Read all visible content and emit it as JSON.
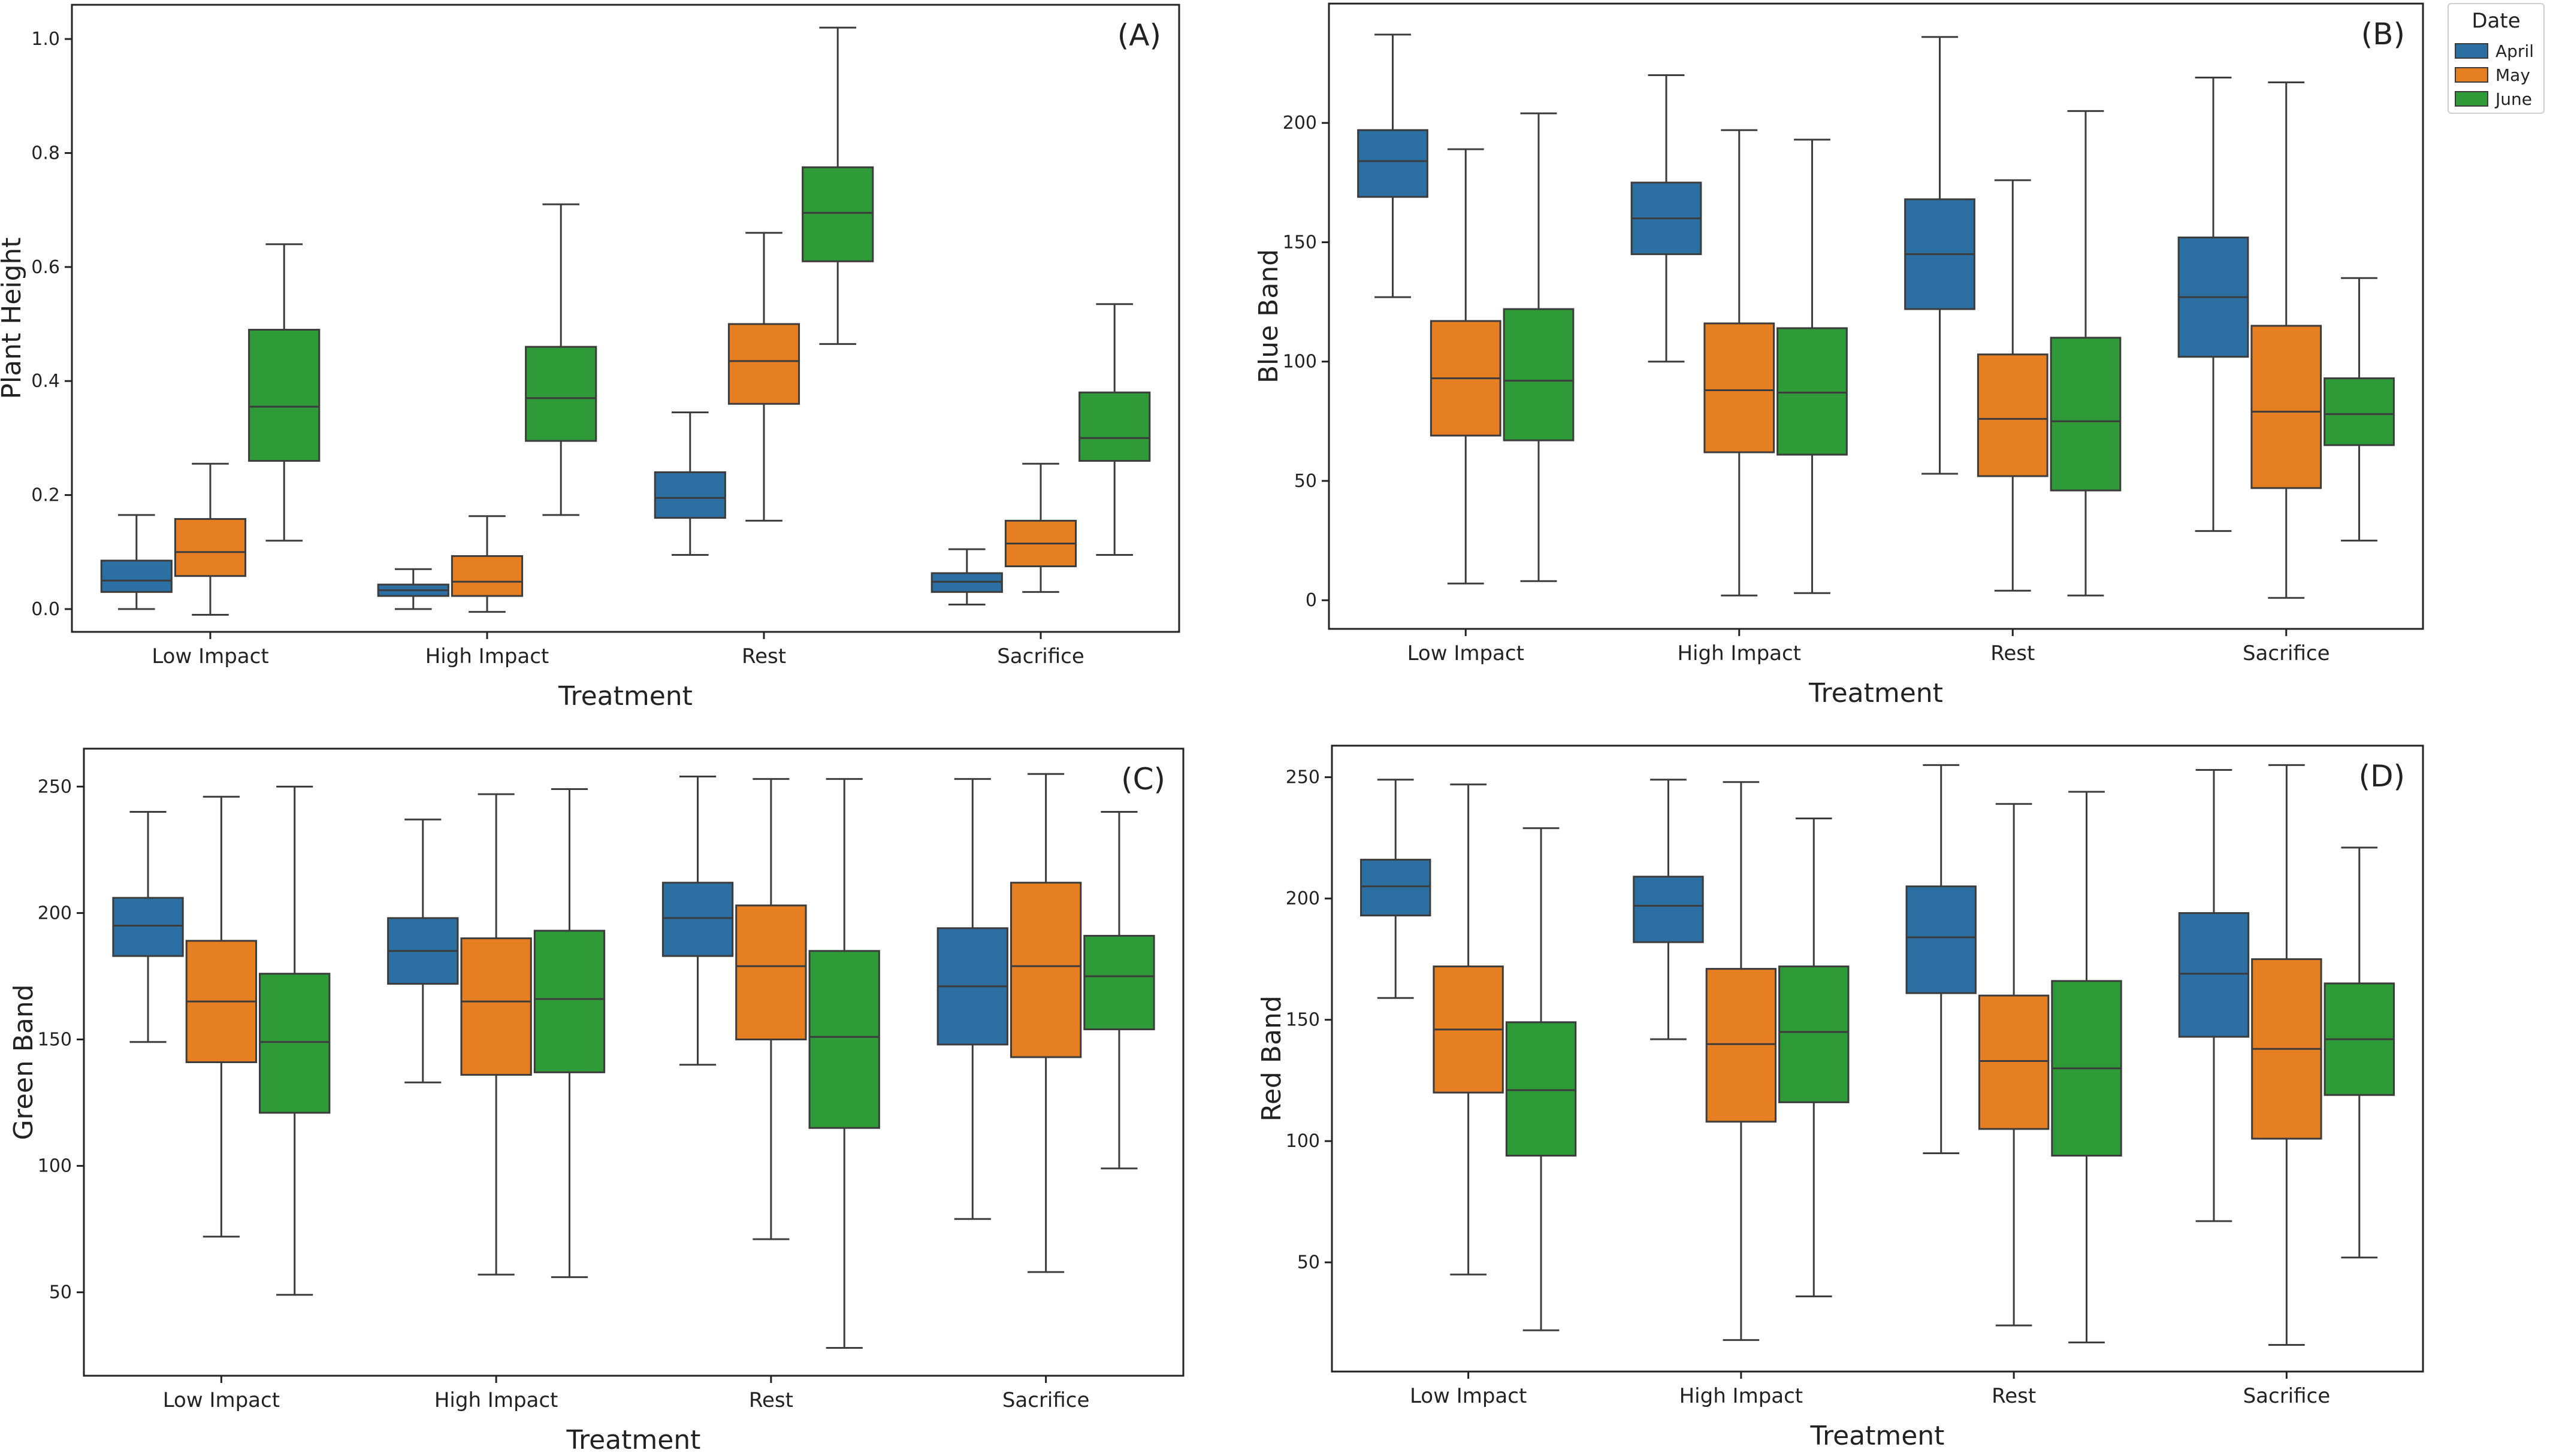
{
  "legend": {
    "title": "Date",
    "items": [
      {
        "label": "April",
        "color": "#2b6fa3"
      },
      {
        "label": "May",
        "color": "#e67e22"
      },
      {
        "label": "June",
        "color": "#2e9a38"
      }
    ]
  },
  "chart_data": [
    {
      "type": "box",
      "panel_label": "(A)",
      "title": "",
      "xlabel": "Treatment",
      "ylabel": "Plant Height",
      "ylim": [
        -0.04,
        1.06
      ],
      "yticks": [
        0.0,
        0.2,
        0.4,
        0.6,
        0.8,
        1.0
      ],
      "ytick_labels": [
        "0.0",
        "0.2",
        "0.4",
        "0.6",
        "0.8",
        "1.0"
      ],
      "categories": [
        "Low Impact",
        "High Impact",
        "Rest",
        "Sacrifice"
      ],
      "series": [
        {
          "name": "April",
          "boxes": [
            {
              "min": 0.0,
              "q1": 0.03,
              "median": 0.05,
              "q3": 0.085,
              "max": 0.165
            },
            {
              "min": 0.0,
              "q1": 0.023,
              "median": 0.033,
              "q3": 0.043,
              "max": 0.07
            },
            {
              "min": 0.095,
              "q1": 0.16,
              "median": 0.195,
              "q3": 0.24,
              "max": 0.345
            },
            {
              "min": 0.008,
              "q1": 0.03,
              "median": 0.048,
              "q3": 0.063,
              "max": 0.105
            }
          ]
        },
        {
          "name": "May",
          "boxes": [
            {
              "min": -0.01,
              "q1": 0.058,
              "median": 0.1,
              "q3": 0.158,
              "max": 0.255
            },
            {
              "min": -0.005,
              "q1": 0.023,
              "median": 0.048,
              "q3": 0.093,
              "max": 0.163
            },
            {
              "min": 0.155,
              "q1": 0.36,
              "median": 0.435,
              "q3": 0.5,
              "max": 0.66
            },
            {
              "min": 0.03,
              "q1": 0.075,
              "median": 0.115,
              "q3": 0.155,
              "max": 0.255
            }
          ]
        },
        {
          "name": "June",
          "boxes": [
            {
              "min": 0.12,
              "q1": 0.26,
              "median": 0.355,
              "q3": 0.49,
              "max": 0.64
            },
            {
              "min": 0.165,
              "q1": 0.295,
              "median": 0.37,
              "q3": 0.46,
              "max": 0.71
            },
            {
              "min": 0.465,
              "q1": 0.61,
              "median": 0.695,
              "q3": 0.775,
              "max": 1.02
            },
            {
              "min": 0.095,
              "q1": 0.26,
              "median": 0.3,
              "q3": 0.38,
              "max": 0.535
            }
          ]
        }
      ]
    },
    {
      "type": "box",
      "panel_label": "(B)",
      "title": "",
      "xlabel": "Treatment",
      "ylabel": "Blue Band",
      "ylim": [
        -12,
        250
      ],
      "yticks": [
        0,
        50,
        100,
        150,
        200
      ],
      "ytick_labels": [
        "0",
        "50",
        "100",
        "150",
        "200"
      ],
      "categories": [
        "Low Impact",
        "High Impact",
        "Rest",
        "Sacrifice"
      ],
      "series": [
        {
          "name": "April",
          "boxes": [
            {
              "min": 127,
              "q1": 169,
              "median": 184,
              "q3": 197,
              "max": 237
            },
            {
              "min": 100,
              "q1": 145,
              "median": 160,
              "q3": 175,
              "max": 220
            },
            {
              "min": 53,
              "q1": 122,
              "median": 145,
              "q3": 168,
              "max": 236
            },
            {
              "min": 29,
              "q1": 102,
              "median": 127,
              "q3": 152,
              "max": 219
            }
          ]
        },
        {
          "name": "May",
          "boxes": [
            {
              "min": 7,
              "q1": 69,
              "median": 93,
              "q3": 117,
              "max": 189
            },
            {
              "min": 2,
              "q1": 62,
              "median": 88,
              "q3": 116,
              "max": 197
            },
            {
              "min": 4,
              "q1": 52,
              "median": 76,
              "q3": 103,
              "max": 176
            },
            {
              "min": 1,
              "q1": 47,
              "median": 79,
              "q3": 115,
              "max": 217
            }
          ]
        },
        {
          "name": "June",
          "boxes": [
            {
              "min": 8,
              "q1": 67,
              "median": 92,
              "q3": 122,
              "max": 204
            },
            {
              "min": 3,
              "q1": 61,
              "median": 87,
              "q3": 114,
              "max": 193
            },
            {
              "min": 2,
              "q1": 46,
              "median": 75,
              "q3": 110,
              "max": 205
            },
            {
              "min": 25,
              "q1": 65,
              "median": 78,
              "q3": 93,
              "max": 135
            }
          ]
        }
      ]
    },
    {
      "type": "box",
      "panel_label": "(C)",
      "title": "",
      "xlabel": "Treatment",
      "ylabel": "Green Band",
      "ylim": [
        17,
        265
      ],
      "yticks": [
        50,
        100,
        150,
        200,
        250
      ],
      "ytick_labels": [
        "50",
        "100",
        "150",
        "200",
        "250"
      ],
      "categories": [
        "Low Impact",
        "High Impact",
        "Rest",
        "Sacrifice"
      ],
      "series": [
        {
          "name": "April",
          "boxes": [
            {
              "min": 149,
              "q1": 183,
              "median": 195,
              "q3": 206,
              "max": 240
            },
            {
              "min": 133,
              "q1": 172,
              "median": 185,
              "q3": 198,
              "max": 237
            },
            {
              "min": 140,
              "q1": 183,
              "median": 198,
              "q3": 212,
              "max": 254
            },
            {
              "min": 79,
              "q1": 148,
              "median": 171,
              "q3": 194,
              "max": 253
            }
          ]
        },
        {
          "name": "May",
          "boxes": [
            {
              "min": 72,
              "q1": 141,
              "median": 165,
              "q3": 189,
              "max": 246
            },
            {
              "min": 57,
              "q1": 136,
              "median": 165,
              "q3": 190,
              "max": 247
            },
            {
              "min": 71,
              "q1": 150,
              "median": 179,
              "q3": 203,
              "max": 253
            },
            {
              "min": 58,
              "q1": 143,
              "median": 179,
              "q3": 212,
              "max": 255
            }
          ]
        },
        {
          "name": "June",
          "boxes": [
            {
              "min": 49,
              "q1": 121,
              "median": 149,
              "q3": 176,
              "max": 250
            },
            {
              "min": 56,
              "q1": 137,
              "median": 166,
              "q3": 193,
              "max": 249
            },
            {
              "min": 28,
              "q1": 115,
              "median": 151,
              "q3": 185,
              "max": 253
            },
            {
              "min": 99,
              "q1": 154,
              "median": 175,
              "q3": 191,
              "max": 240
            }
          ]
        }
      ]
    },
    {
      "type": "box",
      "panel_label": "(D)",
      "title": "",
      "xlabel": "Treatment",
      "ylabel": "Red Band",
      "ylim": [
        5,
        263
      ],
      "yticks": [
        50,
        100,
        150,
        200,
        250
      ],
      "ytick_labels": [
        "50",
        "100",
        "150",
        "200",
        "250"
      ],
      "categories": [
        "Low Impact",
        "High Impact",
        "Rest",
        "Sacrifice"
      ],
      "series": [
        {
          "name": "April",
          "boxes": [
            {
              "min": 159,
              "q1": 193,
              "median": 205,
              "q3": 216,
              "max": 249
            },
            {
              "min": 142,
              "q1": 182,
              "median": 197,
              "q3": 209,
              "max": 249
            },
            {
              "min": 95,
              "q1": 161,
              "median": 184,
              "q3": 205,
              "max": 255
            },
            {
              "min": 67,
              "q1": 143,
              "median": 169,
              "q3": 194,
              "max": 253
            }
          ]
        },
        {
          "name": "May",
          "boxes": [
            {
              "min": 45,
              "q1": 120,
              "median": 146,
              "q3": 172,
              "max": 247
            },
            {
              "min": 18,
              "q1": 108,
              "median": 140,
              "q3": 171,
              "max": 248
            },
            {
              "min": 24,
              "q1": 105,
              "median": 133,
              "q3": 160,
              "max": 239
            },
            {
              "min": 16,
              "q1": 101,
              "median": 138,
              "q3": 175,
              "max": 255
            }
          ]
        },
        {
          "name": "June",
          "boxes": [
            {
              "min": 22,
              "q1": 94,
              "median": 121,
              "q3": 149,
              "max": 229
            },
            {
              "min": 36,
              "q1": 116,
              "median": 145,
              "q3": 172,
              "max": 233
            },
            {
              "min": 17,
              "q1": 94,
              "median": 130,
              "q3": 166,
              "max": 244
            },
            {
              "min": 52,
              "q1": 119,
              "median": 142,
              "q3": 165,
              "max": 221
            }
          ]
        }
      ]
    }
  ]
}
